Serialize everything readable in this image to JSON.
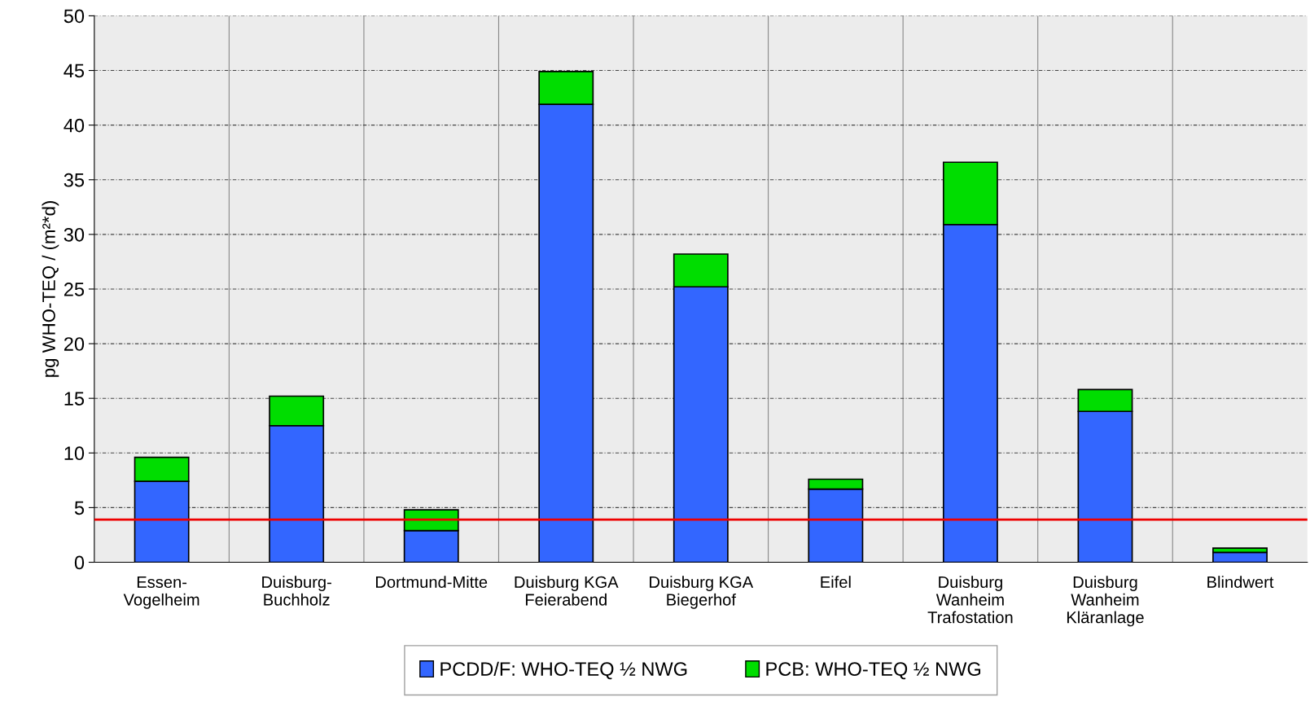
{
  "chart_data": {
    "type": "bar",
    "stacked": true,
    "ylabel": "pg WHO-TEQ / (m²*d)",
    "categories": [
      "Essen-\nVogelheim",
      "Duisburg-\nBuchholz",
      "Dortmund-Mitte",
      "Duisburg KGA\nFeierabend",
      "Duisburg KGA\nBiegerhof",
      "Eifel",
      "Duisburg\nWanheim\nTrafostation",
      "Duisburg\nWanheim\nKläranlage",
      "Blindwert"
    ],
    "series": [
      {
        "name": "PCDD/F: WHO-TEQ ½ NWG",
        "color": "#3366ff",
        "values": [
          7.4,
          12.5,
          2.9,
          41.9,
          25.2,
          6.7,
          30.9,
          13.8,
          0.9
        ]
      },
      {
        "name": "PCB: WHO-TEQ ½ NWG",
        "color": "#00dd00",
        "values": [
          2.2,
          2.7,
          1.9,
          3.0,
          3.0,
          0.9,
          5.7,
          2.0,
          0.4
        ]
      }
    ],
    "ylim": [
      0,
      50
    ],
    "yticks": [
      0,
      5,
      10,
      15,
      20,
      25,
      30,
      35,
      40,
      45,
      50
    ],
    "ref_lines": [
      {
        "axis": "y",
        "value": 3.9,
        "color": "#ee0000"
      }
    ],
    "grid": true,
    "legend": "bottom"
  }
}
